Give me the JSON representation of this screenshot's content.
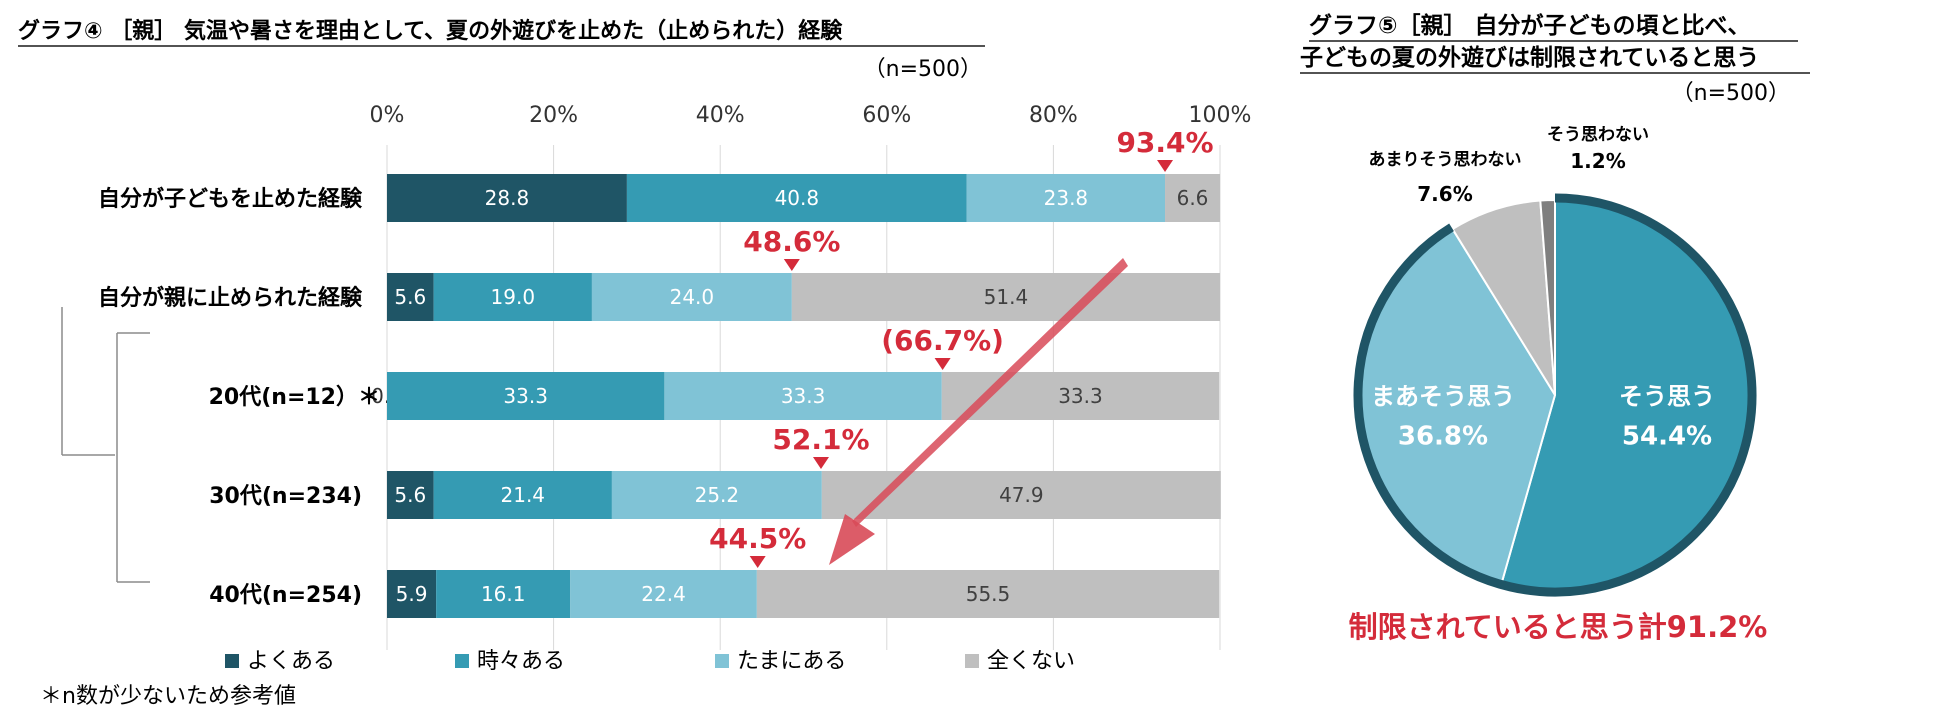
{
  "chart_data": [
    {
      "type": "bar",
      "stacked": true,
      "orientation": "horizontal",
      "title": "グラフ④ ［親］ 気温や暑さを理由として、夏の外遊びを止めた（止められた）経験",
      "sample_note": "（n=500）",
      "footnote": "＊n数が少ないため参考値",
      "xlim": [
        0,
        100
      ],
      "x_ticks": [
        "0%",
        "20%",
        "40%",
        "60%",
        "80%",
        "100%"
      ],
      "grid": true,
      "legend_position": "bottom",
      "categories": [
        "自分が子どもを止めた経験",
        "自分が親に止められた経験",
        "20代(n=12）＊",
        "30代(n=234)",
        "40代(n=254)"
      ],
      "series": [
        {
          "name": "よくある",
          "color": "#1f5566",
          "values": [
            28.8,
            5.6,
            0.0,
            5.6,
            5.9
          ],
          "labels": [
            "28.8",
            "5.6",
            "0.0",
            "5.6",
            "5.9"
          ]
        },
        {
          "name": "時々ある",
          "color": "#359bb3",
          "values": [
            40.8,
            19.0,
            33.3,
            21.4,
            16.1
          ],
          "labels": [
            "40.8",
            "19.0",
            "33.3",
            "21.4",
            "16.1"
          ]
        },
        {
          "name": "たまにある",
          "color": "#80c3d6",
          "values": [
            23.8,
            24.0,
            33.3,
            25.2,
            22.4
          ],
          "labels": [
            "23.8",
            "24.0",
            "33.3",
            "25.2",
            "22.4"
          ]
        },
        {
          "name": "全くない",
          "color": "#bfbfbf",
          "values": [
            6.6,
            51.4,
            33.3,
            47.9,
            55.5
          ],
          "labels": [
            "6.6",
            "51.4",
            "33.3",
            "47.9",
            "55.5"
          ]
        }
      ],
      "totals": [
        {
          "label": "93.4%",
          "value": 93.4
        },
        {
          "label": "48.6%",
          "value": 48.6
        },
        {
          "label": "(66.7%)",
          "value": 66.7
        },
        {
          "label": "52.1%",
          "value": 52.1
        },
        {
          "label": "44.5%",
          "value": 44.5
        }
      ],
      "accent_color": "#d42b3a"
    },
    {
      "type": "pie",
      "title_lines": [
        "グラフ⑤［親］ 自分が子どもの頃と比べ、",
        "子どもの夏の外遊びは制限されていると思う"
      ],
      "sample_note": "（n=500）",
      "slices": [
        {
          "name": "そう思う",
          "value": 54.4,
          "label": "54.4%",
          "color": "#359bb3"
        },
        {
          "name": "まあそう思う",
          "value": 36.8,
          "label": "36.8%",
          "color": "#80c3d6"
        },
        {
          "name": "あまりそう思わない",
          "value": 7.6,
          "label": "7.6%",
          "color": "#bfbfbf"
        },
        {
          "name": "そう思わない",
          "value": 1.2,
          "label": "1.2%",
          "color": "#7f7f7f"
        }
      ],
      "highlight_arc_color": "#1f5566",
      "summary": "制限されていると思う計91.2%",
      "accent_color": "#d42b3a"
    }
  ]
}
